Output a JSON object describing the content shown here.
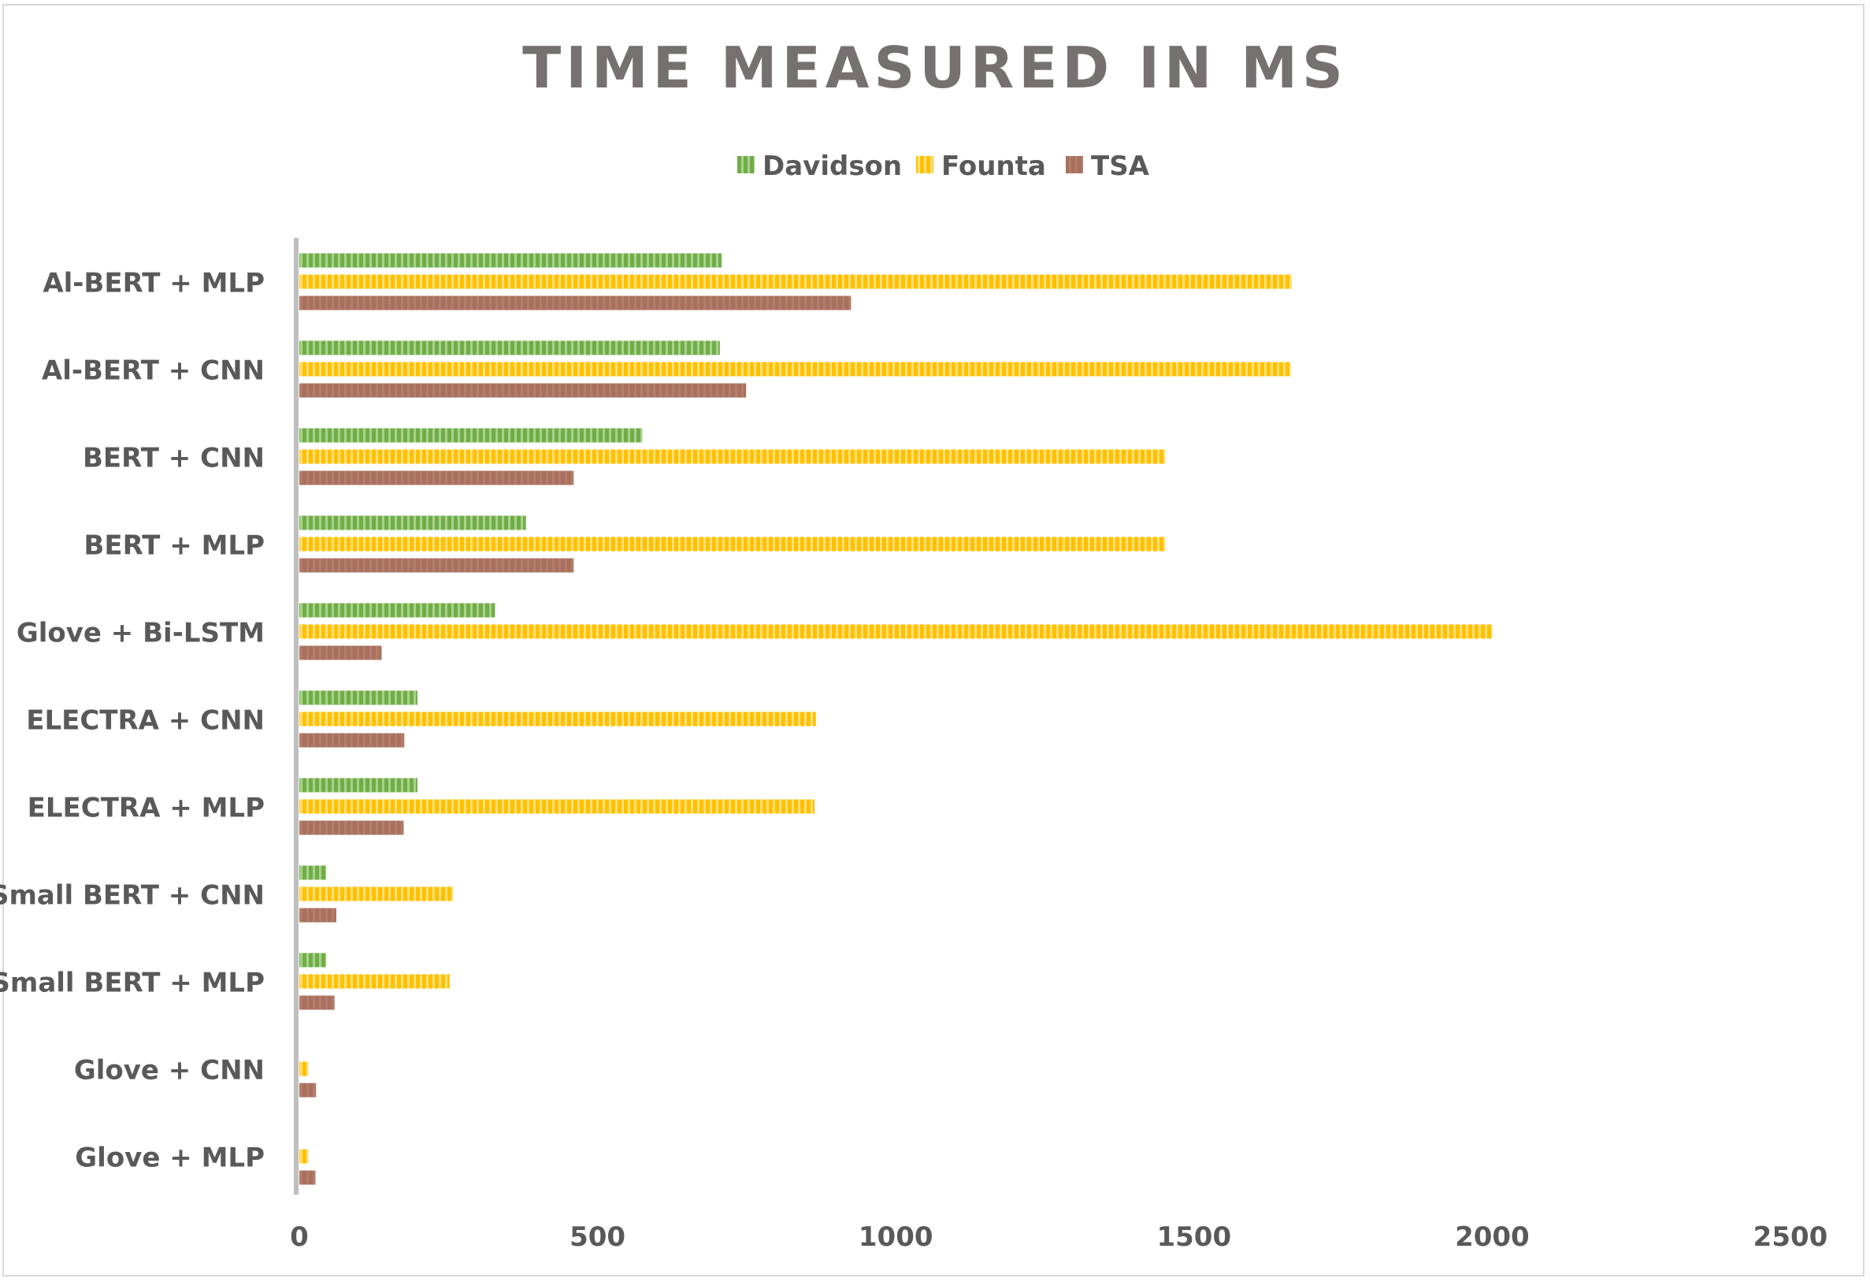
{
  "chart_data": {
    "type": "bar",
    "orientation": "horizontal",
    "title": "TIME MEASURED IN MS",
    "xlabel": "",
    "ylabel": "",
    "xlim": [
      0,
      2500
    ],
    "xticks": [
      0,
      500,
      1000,
      1500,
      2000,
      2500
    ],
    "grid": false,
    "legend_position": "top",
    "categories": [
      "Al-BERT + MLP",
      "Al-BERT + CNN",
      "BERT + CNN",
      "BERT + MLP",
      "Glove + Bi-LSTM",
      "ELECTRA + CNN",
      "ELECTRA + MLP",
      "Small BERT + CNN",
      "Small BERT + MLP",
      "Glove + CNN",
      "Glove + MLP"
    ],
    "series": [
      {
        "name": "Davidson",
        "color": "#70ad47",
        "values": [
          708,
          705,
          575,
          380,
          328,
          198,
          198,
          45,
          45,
          0,
          0
        ]
      },
      {
        "name": "Founta",
        "color": "#ffc000",
        "values": [
          1664,
          1662,
          1452,
          1452,
          2000,
          866,
          864,
          258,
          252,
          15,
          15
        ]
      },
      {
        "name": "TSA",
        "color": "#a9705e",
        "values": [
          925,
          749,
          460,
          460,
          138,
          176,
          175,
          62,
          59,
          28,
          27
        ]
      }
    ]
  }
}
